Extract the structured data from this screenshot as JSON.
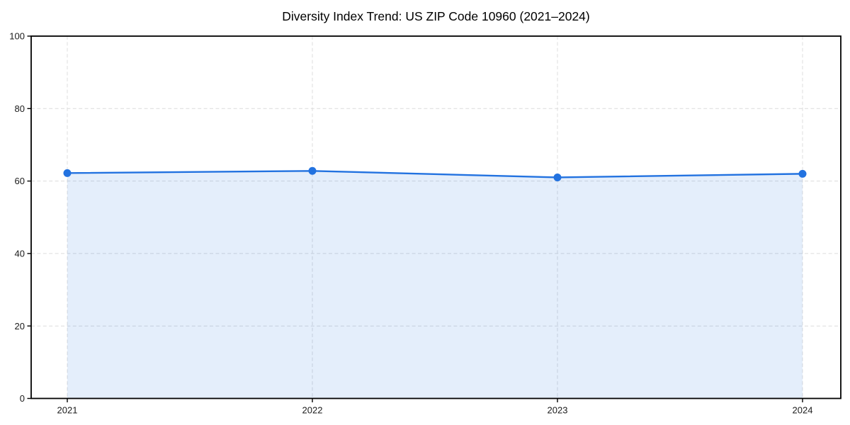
{
  "chart_data": {
    "type": "area",
    "title": "Diversity Index Trend: US ZIP Code 10960 (2021–2024)",
    "categories": [
      "2021",
      "2022",
      "2023",
      "2024"
    ],
    "values": [
      62.2,
      62.8,
      61.0,
      62.0
    ],
    "series_name": "Diversity Index",
    "xlabel": "",
    "ylabel": "",
    "ylim": [
      0,
      100
    ],
    "yticks": [
      0,
      20,
      40,
      60,
      80,
      100
    ],
    "grid": true,
    "grid_style": "dashed",
    "legend": "none",
    "marker": "circle",
    "colors": {
      "line": "#2272E0",
      "marker": "#2272E0",
      "fill": "#2272E0",
      "fill_opacity": 0.12,
      "grid": "#dcdcdc",
      "spine": "#000000",
      "tick_label": "#1a1a1a",
      "background": "#ffffff"
    }
  }
}
